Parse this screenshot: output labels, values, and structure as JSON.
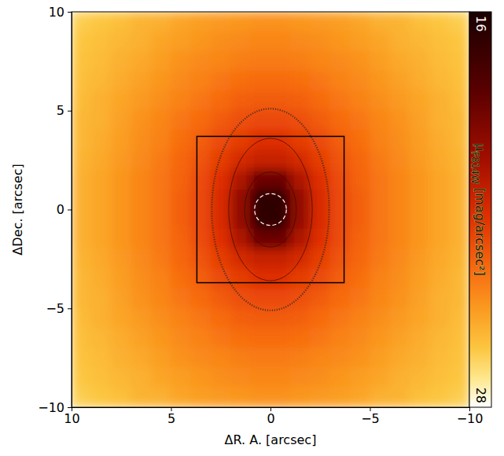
{
  "chart_data": {
    "type": "heatmap",
    "xlabel": "ΔR. A. [arcsec]",
    "ylabel": "ΔDec. [arcsec]",
    "xlim": [
      10,
      -10
    ],
    "ylim": [
      -10,
      10
    ],
    "xticks": [
      10,
      5,
      0,
      {
        "value": -5,
        "label": "−5"
      },
      {
        "value": -10,
        "label": "−10"
      }
    ],
    "yticks": [
      {
        "value": -10,
        "label": "−10"
      },
      {
        "value": -5,
        "label": "−5"
      },
      0,
      5,
      10
    ],
    "x": [
      9.5,
      8.5,
      7.5,
      6.5,
      5.5,
      4.5,
      3.5,
      2.5,
      1.5,
      0.5,
      -0.5,
      -1.5,
      -2.5,
      -3.5,
      -4.5,
      -5.5,
      -6.5,
      -7.5,
      -8.5,
      -9.5
    ],
    "y": [
      9.5,
      8.5,
      7.5,
      6.5,
      5.5,
      4.5,
      3.5,
      2.5,
      1.5,
      0.5,
      -0.5,
      -1.5,
      -2.5,
      -3.5,
      -4.5,
      -5.5,
      -6.5,
      -7.5,
      -8.5,
      -9.5
    ],
    "cells": [
      [
        26.4,
        26.2,
        26.0,
        25.7,
        25.6,
        25.3,
        25.1,
        25.0,
        24.9,
        24.8,
        24.8,
        24.9,
        25.0,
        25.1,
        25.3,
        25.6,
        25.7,
        26.0,
        26.2,
        26.4
      ],
      [
        26.2,
        26.0,
        25.8,
        25.6,
        25.3,
        25.1,
        24.9,
        24.7,
        24.6,
        24.5,
        24.5,
        24.6,
        24.7,
        24.9,
        25.1,
        25.3,
        25.6,
        25.8,
        26.0,
        26.2
      ],
      [
        26.1,
        25.9,
        25.6,
        25.4,
        25.1,
        24.8,
        24.6,
        24.5,
        24.3,
        24.2,
        24.2,
        24.3,
        24.5,
        24.6,
        24.8,
        25.1,
        25.4,
        25.6,
        25.9,
        26.1
      ],
      [
        26.0,
        25.8,
        25.5,
        25.2,
        24.9,
        24.6,
        24.4,
        24.1,
        23.9,
        23.8,
        23.8,
        23.9,
        24.1,
        24.4,
        24.6,
        24.9,
        25.2,
        25.5,
        25.8,
        26.0
      ],
      [
        25.9,
        25.6,
        25.3,
        25.0,
        24.7,
        24.4,
        24.1,
        23.8,
        23.5,
        23.4,
        23.4,
        23.5,
        23.8,
        24.1,
        24.4,
        24.7,
        25.0,
        25.3,
        25.6,
        25.9
      ],
      [
        25.8,
        25.6,
        25.2,
        24.8,
        24.5,
        24.1,
        23.8,
        23.4,
        23.1,
        22.9,
        22.9,
        23.1,
        23.4,
        23.8,
        24.1,
        24.5,
        24.8,
        25.2,
        25.6,
        25.8
      ],
      [
        25.8,
        25.5,
        25.1,
        24.7,
        24.4,
        23.9,
        23.5,
        23.0,
        22.6,
        22.2,
        22.2,
        22.6,
        23.0,
        23.5,
        23.9,
        24.4,
        24.7,
        25.1,
        25.5,
        25.8
      ],
      [
        25.7,
        25.4,
        25.0,
        24.6,
        24.2,
        23.7,
        23.2,
        22.6,
        21.9,
        21.5,
        21.5,
        21.9,
        22.6,
        23.2,
        23.7,
        24.2,
        24.6,
        25.0,
        25.4,
        25.7
      ],
      [
        25.6,
        25.3,
        24.9,
        24.5,
        24.1,
        23.6,
        23.0,
        22.2,
        20.8,
        18.9,
        18.9,
        20.8,
        22.2,
        23.0,
        23.6,
        24.1,
        24.5,
        24.9,
        25.3,
        25.6
      ],
      [
        25.6,
        25.3,
        24.9,
        24.5,
        24.1,
        23.5,
        22.9,
        22.0,
        20.0,
        16.8,
        16.8,
        20.0,
        22.0,
        22.9,
        23.5,
        24.1,
        24.5,
        24.9,
        25.3,
        25.6
      ],
      [
        25.6,
        25.3,
        24.9,
        24.5,
        24.1,
        23.5,
        22.9,
        22.0,
        20.0,
        16.8,
        16.8,
        20.0,
        22.0,
        22.9,
        23.5,
        24.1,
        24.5,
        24.9,
        25.3,
        25.6
      ],
      [
        25.6,
        25.3,
        24.9,
        24.5,
        24.1,
        23.6,
        23.0,
        22.2,
        20.8,
        18.9,
        18.9,
        20.8,
        22.2,
        23.0,
        23.6,
        24.1,
        24.5,
        24.9,
        25.3,
        25.6
      ],
      [
        25.7,
        25.4,
        25.0,
        24.6,
        24.2,
        23.7,
        23.2,
        22.6,
        21.9,
        21.5,
        21.5,
        21.9,
        22.6,
        23.2,
        23.7,
        24.2,
        24.6,
        25.0,
        25.4,
        25.7
      ],
      [
        25.8,
        25.5,
        25.1,
        24.7,
        24.4,
        23.9,
        23.5,
        23.0,
        22.6,
        22.2,
        22.2,
        22.6,
        23.0,
        23.5,
        23.9,
        24.4,
        24.7,
        25.1,
        25.5,
        25.8
      ],
      [
        25.8,
        25.6,
        25.2,
        24.8,
        24.5,
        24.1,
        23.8,
        23.4,
        23.1,
        22.9,
        22.9,
        23.1,
        23.4,
        23.8,
        24.1,
        24.5,
        24.8,
        25.2,
        25.6,
        25.8
      ],
      [
        25.9,
        25.6,
        25.3,
        25.0,
        24.7,
        24.4,
        24.1,
        23.8,
        23.5,
        23.4,
        23.4,
        23.5,
        23.8,
        24.1,
        24.4,
        24.7,
        25.0,
        25.3,
        25.6,
        25.9
      ],
      [
        26.0,
        25.8,
        25.5,
        25.2,
        24.9,
        24.6,
        24.4,
        24.1,
        23.9,
        23.8,
        23.8,
        23.9,
        24.1,
        24.4,
        24.6,
        24.9,
        25.2,
        25.5,
        25.8,
        26.0
      ],
      [
        26.1,
        25.9,
        25.6,
        25.4,
        25.1,
        24.8,
        24.6,
        24.5,
        24.3,
        24.2,
        24.2,
        24.3,
        24.5,
        24.6,
        24.8,
        25.1,
        25.4,
        25.6,
        25.9,
        26.1
      ],
      [
        26.2,
        26.0,
        25.8,
        25.6,
        25.3,
        25.1,
        24.9,
        24.7,
        24.6,
        24.5,
        24.5,
        24.6,
        24.7,
        24.9,
        25.1,
        25.3,
        25.6,
        25.8,
        26.0,
        26.2
      ],
      [
        26.4,
        26.2,
        26.0,
        25.7,
        25.6,
        25.3,
        25.1,
        25.0,
        24.9,
        24.8,
        24.8,
        24.9,
        25.0,
        25.1,
        25.3,
        25.6,
        25.7,
        26.0,
        26.2,
        26.4
      ]
    ],
    "colorbar": {
      "label": "μ",
      "label_subscript": "F814W",
      "label_unit": "[mag/arcsec²]",
      "lim": [
        16,
        28
      ],
      "ticks": [
        16,
        28
      ]
    },
    "center": {
      "x": 0,
      "y": 0
    },
    "circle_radius": 0.8,
    "contours": [
      {
        "rx": 0.7,
        "ry": 0.9
      },
      {
        "rx": 1.3,
        "ry": 1.9
      },
      {
        "rx": 2.1,
        "ry": 3.6
      }
    ],
    "ring": {
      "rx": 2.95,
      "ry": 5.1
    },
    "box": {
      "x": [
        3.7,
        -3.7
      ],
      "y": [
        -3.7,
        3.7
      ]
    }
  }
}
